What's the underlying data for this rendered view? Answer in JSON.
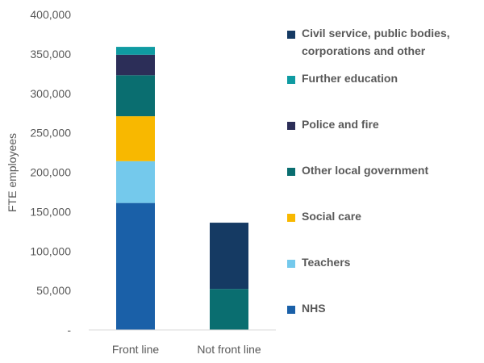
{
  "chart_data": {
    "type": "bar",
    "stacked": true,
    "categories": [
      "Front line",
      "Not front line"
    ],
    "ylabel": "FTE employees",
    "ylim": [
      0,
      400000
    ],
    "yticks": [
      0,
      50000,
      100000,
      150000,
      200000,
      250000,
      300000,
      350000,
      400000
    ],
    "ytick_labels": [
      "-",
      "50,000",
      "100,000",
      "150,000",
      "200,000",
      "250,000",
      "300,000",
      "350,000",
      "400,000"
    ],
    "grid": false,
    "legend_position": "right",
    "series": [
      {
        "name": "NHS",
        "color": "#1a60a8",
        "values": [
          161000,
          0
        ]
      },
      {
        "name": "Teachers",
        "color": "#74c9ec",
        "values": [
          53000,
          0
        ]
      },
      {
        "name": "Social care",
        "color": "#f8b800",
        "values": [
          57000,
          0
        ]
      },
      {
        "name": "Other local government",
        "color": "#0a6e70",
        "values": [
          52000,
          52000
        ]
      },
      {
        "name": "Police and fire",
        "color": "#2c2e58",
        "values": [
          26000,
          0
        ]
      },
      {
        "name": "Further education",
        "color": "#0f9ba2",
        "values": [
          10000,
          0
        ]
      },
      {
        "name": "Civil service, public bodies, corporations and other",
        "color": "#153a63",
        "values": [
          0,
          84000
        ]
      }
    ],
    "legend_order": [
      6,
      5,
      4,
      3,
      2,
      1,
      0
    ],
    "legend_lines": [
      [
        "Civil service, public bodies,",
        "corporations and other"
      ],
      [
        "Further education"
      ],
      [
        "Police and fire"
      ],
      [
        "Other local government"
      ],
      [
        "Social care"
      ],
      [
        "Teachers"
      ],
      [
        "NHS"
      ]
    ]
  }
}
